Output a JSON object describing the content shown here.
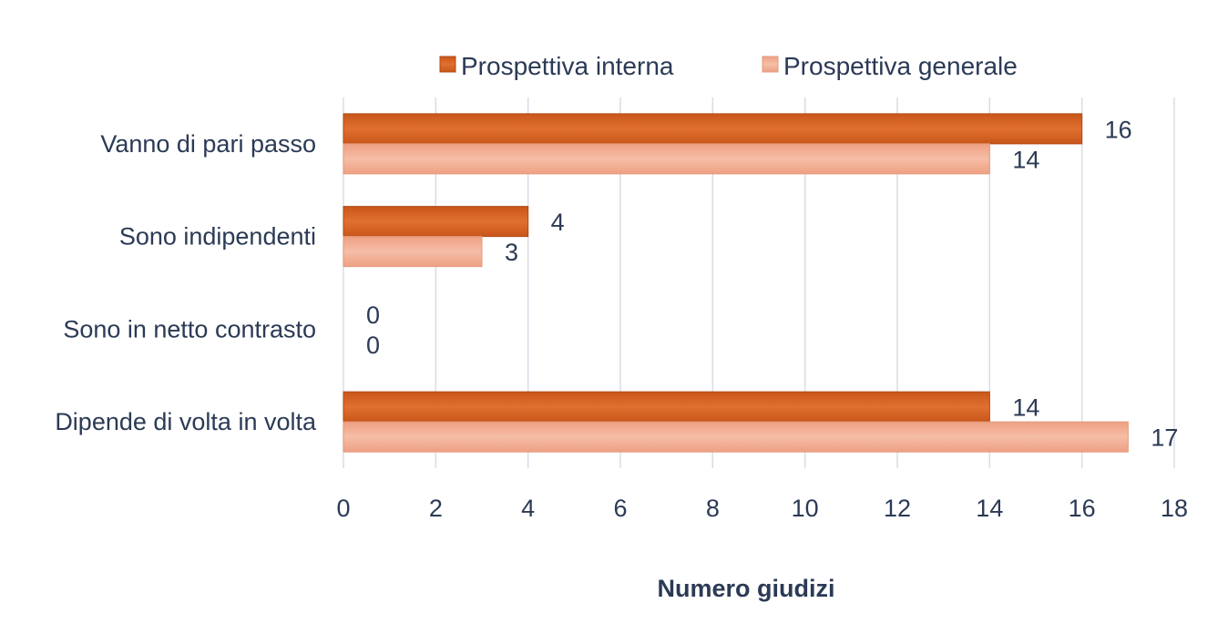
{
  "chart_data": {
    "type": "bar",
    "orientation": "horizontal",
    "categories": [
      "Vanno di pari passo",
      "Sono indipendenti",
      "Sono in netto contrasto",
      "Dipende di volta in volta"
    ],
    "series": [
      {
        "name": "Prospettiva interna",
        "values": [
          16,
          4,
          0,
          14
        ],
        "color": "#d35f1f"
      },
      {
        "name": "Prospettiva generale",
        "values": [
          14,
          3,
          0,
          17
        ],
        "color": "#f0a98c"
      }
    ],
    "xlabel": "Numero giudizi",
    "ylabel": "",
    "xlim": [
      0,
      18
    ],
    "xticks": [
      0,
      2,
      4,
      6,
      8,
      10,
      12,
      14,
      16,
      18
    ],
    "grid": true,
    "legend_position": "top",
    "data_labels": true
  }
}
